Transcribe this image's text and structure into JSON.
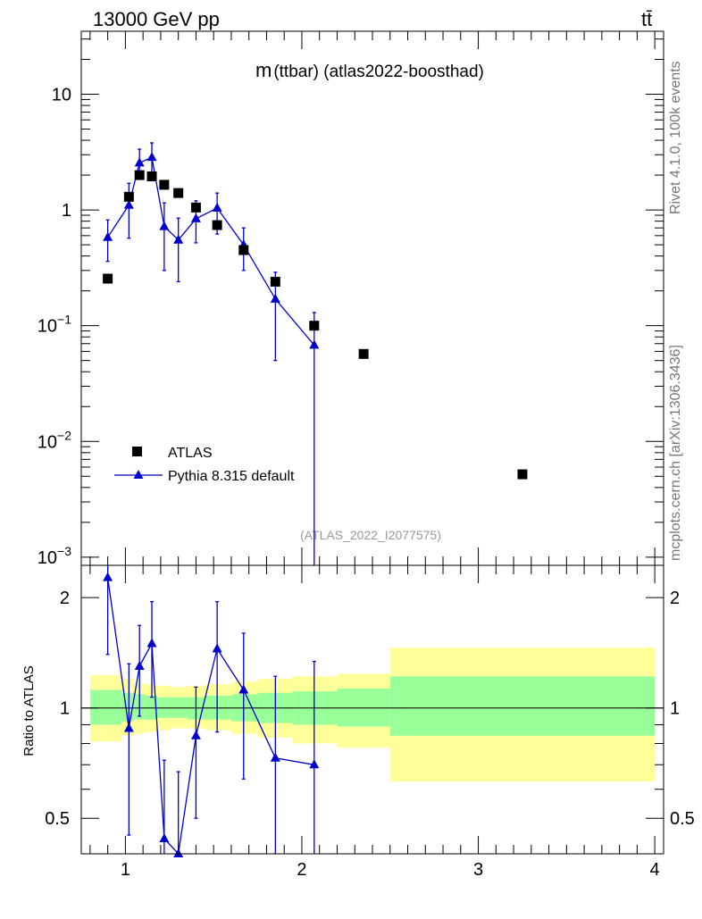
{
  "header": {
    "energy_label": "13000 GeV pp",
    "process_label": "tt̄",
    "plot_title_m": "m",
    "plot_title_rest": "(ttbar) (atlas2022-boosthad)",
    "side_label_top": "Rivet 4.1.0,  100k events",
    "side_label_bottom": "mcplots.cern.ch [arXiv:1306.3436]",
    "analysis_label": "(ATLAS_2022_I2077575)"
  },
  "colors": {
    "mc": "#0000cc",
    "data": "#000000",
    "band_inner": "#99ff99",
    "band_outer": "#ffff99"
  },
  "chart_data": [
    {
      "type": "scatter",
      "title": "m(ttbar) (atlas2022-boosthad)",
      "xlabel": "",
      "ylabel": "",
      "yscale": "log",
      "xlim": [
        0.75,
        4.05
      ],
      "ylim": [
        0.00085,
        35
      ],
      "y_ticks": [
        {
          "value": 10,
          "label": "10",
          "base": "10",
          "exp": ""
        },
        {
          "value": 1,
          "label": "1",
          "base": "1",
          "exp": ""
        },
        {
          "value": 0.1,
          "label": "10^-1",
          "base": "10",
          "exp": "−1"
        },
        {
          "value": 0.01,
          "label": "10^-2",
          "base": "10",
          "exp": "−2"
        },
        {
          "value": 0.001,
          "label": "10^-3",
          "base": "10",
          "exp": "−3"
        }
      ],
      "legend": {
        "position": "lower-left",
        "entries": [
          {
            "label": "ATLAS",
            "marker": "square"
          },
          {
            "label": "Pythia 8.315 default",
            "marker": "triangle-line"
          }
        ]
      },
      "series": [
        {
          "name": "ATLAS",
          "x": [
            0.9,
            1.02,
            1.08,
            1.15,
            1.22,
            1.3,
            1.4,
            1.52,
            1.67,
            1.85,
            2.07,
            2.35,
            3.25
          ],
          "y": [
            0.255,
            1.3,
            2.0,
            1.95,
            1.65,
            1.4,
            1.05,
            0.74,
            0.45,
            0.24,
            0.1,
            0.057,
            0.0052
          ]
        },
        {
          "name": "Pythia 8.315 default",
          "x": [
            0.9,
            1.02,
            1.08,
            1.15,
            1.22,
            1.3,
            1.4,
            1.52,
            1.67,
            1.85,
            2.07
          ],
          "y": [
            0.58,
            1.1,
            2.55,
            2.85,
            0.72,
            0.55,
            0.84,
            1.04,
            0.5,
            0.17,
            0.068
          ],
          "err_low": [
            0.36,
            0.57,
            1.85,
            2.08,
            0.3,
            0.24,
            0.52,
            0.62,
            0.3,
            0.05,
            0.0001
          ],
          "err_high": [
            0.82,
            1.7,
            3.35,
            3.8,
            1.15,
            0.85,
            1.2,
            1.4,
            0.7,
            0.29,
            0.13
          ]
        }
      ]
    },
    {
      "type": "ratio",
      "ylabel": "Ratio to ATLAS",
      "xlim": [
        0.75,
        4.05
      ],
      "ylim": [
        0.4,
        2.45
      ],
      "y_ticks": [
        0.5,
        1,
        2
      ],
      "x_ticks": [
        1,
        2,
        3,
        4
      ],
      "reference_line": 1,
      "bands": [
        {
          "x0": 0.8,
          "x1": 0.98,
          "inner": [
            0.9,
            1.12
          ],
          "outer": [
            0.81,
            1.23
          ]
        },
        {
          "x0": 0.98,
          "x1": 1.05,
          "inner": [
            0.92,
            1.1
          ],
          "outer": [
            0.84,
            1.2
          ]
        },
        {
          "x0": 1.05,
          "x1": 1.11,
          "inner": [
            0.93,
            1.09
          ],
          "outer": [
            0.85,
            1.17
          ]
        },
        {
          "x0": 1.11,
          "x1": 1.18,
          "inner": [
            0.93,
            1.08
          ],
          "outer": [
            0.86,
            1.16
          ]
        },
        {
          "x0": 1.18,
          "x1": 1.26,
          "inner": [
            0.94,
            1.07
          ],
          "outer": [
            0.87,
            1.15
          ]
        },
        {
          "x0": 1.26,
          "x1": 1.35,
          "inner": [
            0.94,
            1.07
          ],
          "outer": [
            0.88,
            1.14
          ]
        },
        {
          "x0": 1.35,
          "x1": 1.45,
          "inner": [
            0.93,
            1.07
          ],
          "outer": [
            0.88,
            1.15
          ]
        },
        {
          "x0": 1.45,
          "x1": 1.6,
          "inner": [
            0.93,
            1.08
          ],
          "outer": [
            0.87,
            1.16
          ]
        },
        {
          "x0": 1.6,
          "x1": 1.75,
          "inner": [
            0.92,
            1.09
          ],
          "outer": [
            0.85,
            1.18
          ]
        },
        {
          "x0": 1.75,
          "x1": 1.95,
          "inner": [
            0.91,
            1.1
          ],
          "outer": [
            0.83,
            1.2
          ]
        },
        {
          "x0": 1.95,
          "x1": 2.2,
          "inner": [
            0.9,
            1.11
          ],
          "outer": [
            0.8,
            1.22
          ]
        },
        {
          "x0": 2.2,
          "x1": 2.5,
          "inner": [
            0.89,
            1.13
          ],
          "outer": [
            0.78,
            1.24
          ]
        },
        {
          "x0": 2.5,
          "x1": 4.0,
          "inner": [
            0.84,
            1.22
          ],
          "outer": [
            0.63,
            1.46
          ]
        }
      ],
      "series": [
        {
          "name": "Pythia 8.315 default / ATLAS",
          "x": [
            0.9,
            1.02,
            1.08,
            1.15,
            1.22,
            1.3,
            1.4,
            1.52,
            1.67,
            1.85,
            2.07
          ],
          "y": [
            2.27,
            0.88,
            1.3,
            1.5,
            0.44,
            0.4,
            0.84,
            1.45,
            1.12,
            0.73,
            0.7
          ],
          "err_low": [
            1.4,
            0.45,
            0.95,
            1.07,
            0.4,
            0.4,
            0.5,
            0.86,
            0.64,
            0.4,
            0.4
          ],
          "err_high": [
            3.2,
            1.32,
            1.68,
            1.95,
            0.72,
            0.67,
            1.14,
            1.95,
            1.6,
            1.22,
            1.34
          ]
        }
      ]
    }
  ]
}
